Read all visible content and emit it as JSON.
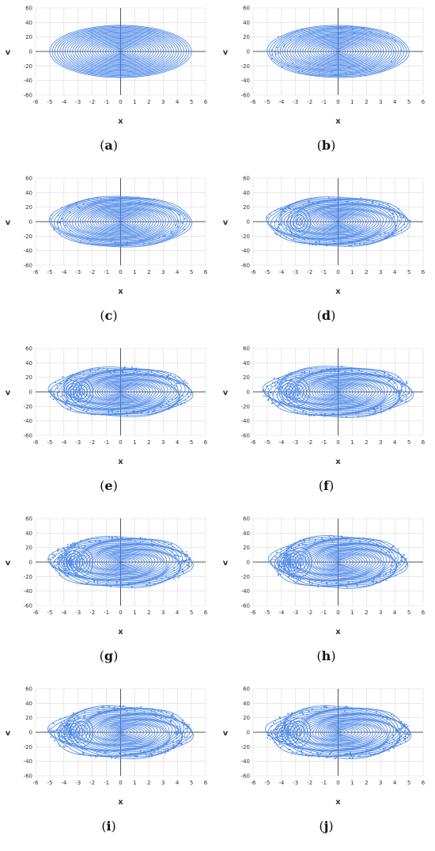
{
  "axes": {
    "xlabel": "x",
    "ylabel": "v",
    "xlim": [
      -6,
      6
    ],
    "ylim": [
      -60,
      60
    ],
    "xticks": [
      "-6",
      "-5",
      "-4",
      "-3",
      "-2",
      "-1",
      "0",
      "1",
      "2",
      "3",
      "4",
      "5",
      "6"
    ],
    "yticks": [
      "60",
      "40",
      "20",
      "0",
      "-20",
      "-40",
      "-60"
    ]
  },
  "colors": {
    "trajectory": "#4a86e8",
    "grid": "#d9d9d9",
    "axis": "#555555"
  },
  "chart_data": [
    {
      "type": "scatter",
      "label": "a",
      "caption": "(a)",
      "a_max": 5.0,
      "v_max": 36,
      "chaos": 0.0,
      "islands": 0,
      "shift": 0.0
    },
    {
      "type": "scatter",
      "label": "b",
      "caption": "(b)",
      "a_max": 5.0,
      "v_max": 36,
      "chaos": 0.15,
      "islands": 0,
      "shift": 0.0
    },
    {
      "type": "scatter",
      "label": "c",
      "caption": "(c)",
      "a_max": 5.0,
      "v_max": 35,
      "chaos": 0.3,
      "islands": 0,
      "shift": 0.0
    },
    {
      "type": "scatter",
      "label": "d",
      "caption": "(d)",
      "a_max": 5.0,
      "v_max": 34,
      "chaos": 0.55,
      "islands": 1,
      "shift": 0.0
    },
    {
      "type": "scatter",
      "label": "e",
      "caption": "(e)",
      "a_max": 5.0,
      "v_max": 34,
      "chaos": 0.7,
      "islands": 2,
      "shift": 0.3
    },
    {
      "type": "scatter",
      "label": "f",
      "caption": "(f)",
      "a_max": 5.2,
      "v_max": 35,
      "chaos": 0.75,
      "islands": 2,
      "shift": 0.4
    },
    {
      "type": "scatter",
      "label": "g",
      "caption": "(g)",
      "a_max": 5.0,
      "v_max": 35,
      "chaos": 0.8,
      "islands": 3,
      "shift": 0.6
    },
    {
      "type": "scatter",
      "label": "h",
      "caption": "(h)",
      "a_max": 4.8,
      "v_max": 36,
      "chaos": 0.8,
      "islands": 3,
      "shift": 0.8
    },
    {
      "type": "scatter",
      "label": "i",
      "caption": "(i)",
      "a_max": 5.0,
      "v_max": 36,
      "chaos": 0.85,
      "islands": 3,
      "shift": 1.0
    },
    {
      "type": "scatter",
      "label": "j",
      "caption": "(j)",
      "a_max": 5.0,
      "v_max": 36,
      "chaos": 0.85,
      "islands": 3,
      "shift": 1.1
    }
  ]
}
